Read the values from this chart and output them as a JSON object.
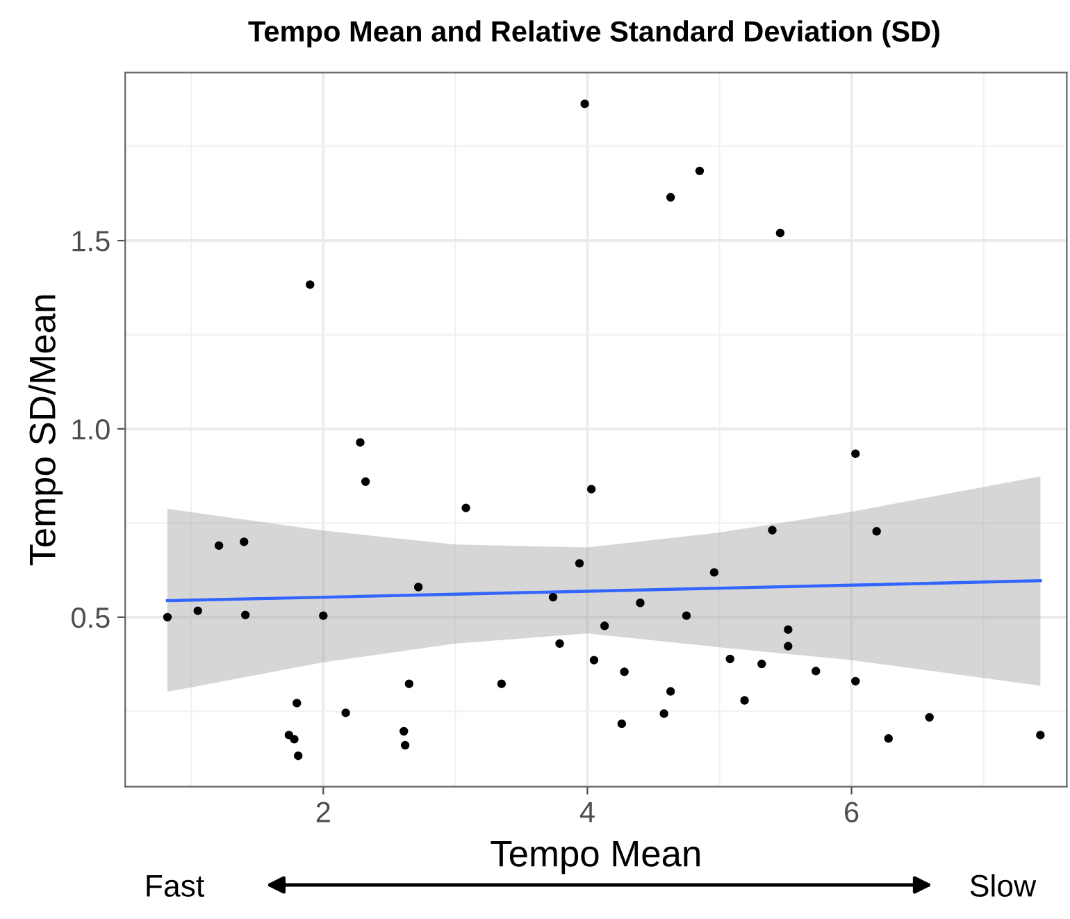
{
  "chart_data": {
    "type": "scatter",
    "title": "Tempo Mean and Relative Standard Deviation (SD)",
    "xlabel": "Tempo Mean",
    "ylabel": "Tempo SD/Mean",
    "xlim": [
      0.5,
      7.63
    ],
    "ylim": [
      0.05,
      1.946
    ],
    "xticks": [
      2,
      4,
      6
    ],
    "yticks": [
      {
        "value": 0.5,
        "label": "0.5"
      },
      {
        "value": 1.0,
        "label": "1.0"
      },
      {
        "value": 1.5,
        "label": "1.5"
      }
    ],
    "grid": true,
    "series": [
      {
        "marker": "circle",
        "color": "#000000",
        "x": [
          0.82,
          1.05,
          1.21,
          1.4,
          1.41,
          1.74,
          1.78,
          1.8,
          1.81,
          1.9,
          2.0,
          2.17,
          2.28,
          2.32,
          2.61,
          2.62,
          2.65,
          2.72,
          3.08,
          3.35,
          3.74,
          3.79,
          3.94,
          3.98,
          4.03,
          4.05,
          4.13,
          4.26,
          4.28,
          4.4,
          4.58,
          4.63,
          4.63,
          4.75,
          4.85,
          4.96,
          5.08,
          5.19,
          5.32,
          5.4,
          5.46,
          5.52,
          5.52,
          5.73,
          6.03,
          6.03,
          6.19,
          6.28,
          6.59,
          7.43
        ],
        "values": [
          0.5,
          0.517,
          0.69,
          0.7,
          0.506,
          0.187,
          0.176,
          0.272,
          0.132,
          1.383,
          0.504,
          0.246,
          0.964,
          0.86,
          0.197,
          0.16,
          0.323,
          0.58,
          0.79,
          0.323,
          0.553,
          0.43,
          0.643,
          1.863,
          0.84,
          0.386,
          0.477,
          0.217,
          0.355,
          0.538,
          0.244,
          0.303,
          1.615,
          0.504,
          1.685,
          0.619,
          0.389,
          0.279,
          0.376,
          0.731,
          1.52,
          0.467,
          0.423,
          0.357,
          0.934,
          0.33,
          0.728,
          0.178,
          0.234,
          0.187
        ]
      },
      {
        "type": "line",
        "marker": "none",
        "color": "#3366ff",
        "x": [
          0.82,
          2,
          3,
          4,
          5,
          6,
          7.43
        ],
        "values": [
          0.544,
          0.553,
          0.561,
          0.569,
          0.577,
          0.585,
          0.597
        ],
        "lower": [
          0.302,
          0.38,
          0.43,
          0.457,
          0.42,
          0.386,
          0.318
        ],
        "upper": [
          0.788,
          0.73,
          0.693,
          0.685,
          0.725,
          0.78,
          0.874
        ]
      }
    ],
    "annotations": [
      "Fast",
      "Slow"
    ]
  }
}
